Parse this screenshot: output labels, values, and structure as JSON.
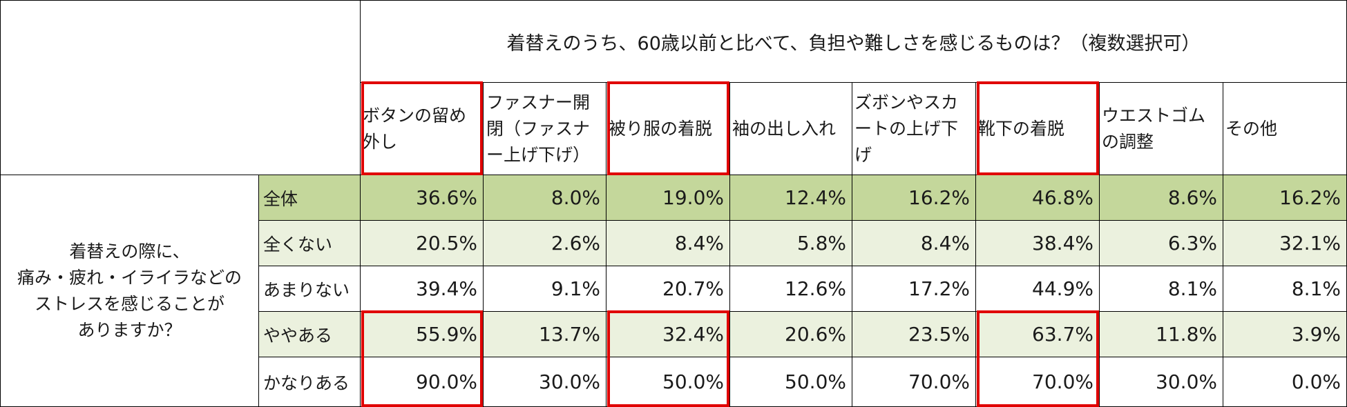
{
  "chart_data": {
    "type": "table",
    "title": "着替えのうち、60歳以前と比べて、負担や難しさを感じるものは？（複数選択可）",
    "row_group_label": "着替えの際に、\n痛み・疲れ・イライラなどの\nストレスを感じることが\nありますか？",
    "columns": [
      "ボタンの留め外し",
      "ファスナー開閉（ファスナー上げ下げ）",
      "被り服の着脱",
      "袖の出し入れ",
      "ズボンやスカートの上げ下げ",
      "靴下の着脱",
      "ウエストゴムの調整",
      "その他"
    ],
    "rows": [
      {
        "label": "全体",
        "values": [
          "36.6%",
          "8.0%",
          "19.0%",
          "12.4%",
          "16.2%",
          "46.8%",
          "8.6%",
          "16.2%"
        ]
      },
      {
        "label": "全くない",
        "values": [
          "20.5%",
          "2.6%",
          "8.4%",
          "5.8%",
          "8.4%",
          "38.4%",
          "6.3%",
          "32.1%"
        ]
      },
      {
        "label": "あまりない",
        "values": [
          "39.4%",
          "9.1%",
          "20.7%",
          "12.6%",
          "17.2%",
          "44.9%",
          "8.1%",
          "8.1%"
        ]
      },
      {
        "label": "ややある",
        "values": [
          "55.9%",
          "13.7%",
          "32.4%",
          "20.6%",
          "23.5%",
          "63.7%",
          "11.8%",
          "3.9%"
        ]
      },
      {
        "label": "かなりある",
        "values": [
          "90.0%",
          "30.0%",
          "50.0%",
          "50.0%",
          "70.0%",
          "70.0%",
          "30.0%",
          "0.0%"
        ]
      }
    ],
    "highlighted_columns": [
      0,
      2,
      5
    ],
    "highlight_color": "#e00000",
    "band_colors": {
      "total": "#c4d79b",
      "light": "#ebf1de",
      "white": "#ffffff"
    }
  }
}
